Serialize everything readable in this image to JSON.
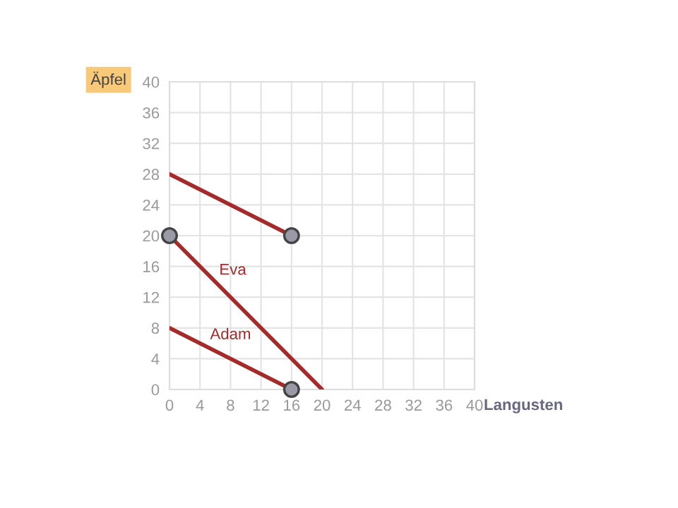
{
  "chart_data": {
    "type": "line",
    "xlabel": "Langusten",
    "ylabel": "Äpfel",
    "xlim": [
      0,
      40
    ],
    "xticks": [
      0,
      4,
      8,
      12,
      16,
      20,
      24,
      28,
      32,
      36,
      40
    ],
    "ylim": [
      0,
      40
    ],
    "yticks": [
      0,
      4,
      8,
      12,
      16,
      20,
      24,
      28,
      32,
      36,
      40
    ],
    "grid": true,
    "marker": "none",
    "line_style": "solid",
    "series": [
      {
        "color": "#a52a2a",
        "x": [
          0,
          16
        ],
        "values": [
          28,
          20
        ]
      },
      {
        "name": "Eva",
        "color": "#a52a2a",
        "x": [
          0,
          20
        ],
        "values": [
          20,
          0
        ]
      },
      {
        "name": "Adam",
        "color": "#a52a2a",
        "x": [
          0,
          16
        ],
        "values": [
          8,
          0
        ]
      },
      {
        "type": "scatter",
        "marker": "circle",
        "color": "#9a9aa6",
        "x": [
          0,
          16,
          16
        ],
        "values": [
          20,
          20,
          0
        ]
      }
    ]
  }
}
